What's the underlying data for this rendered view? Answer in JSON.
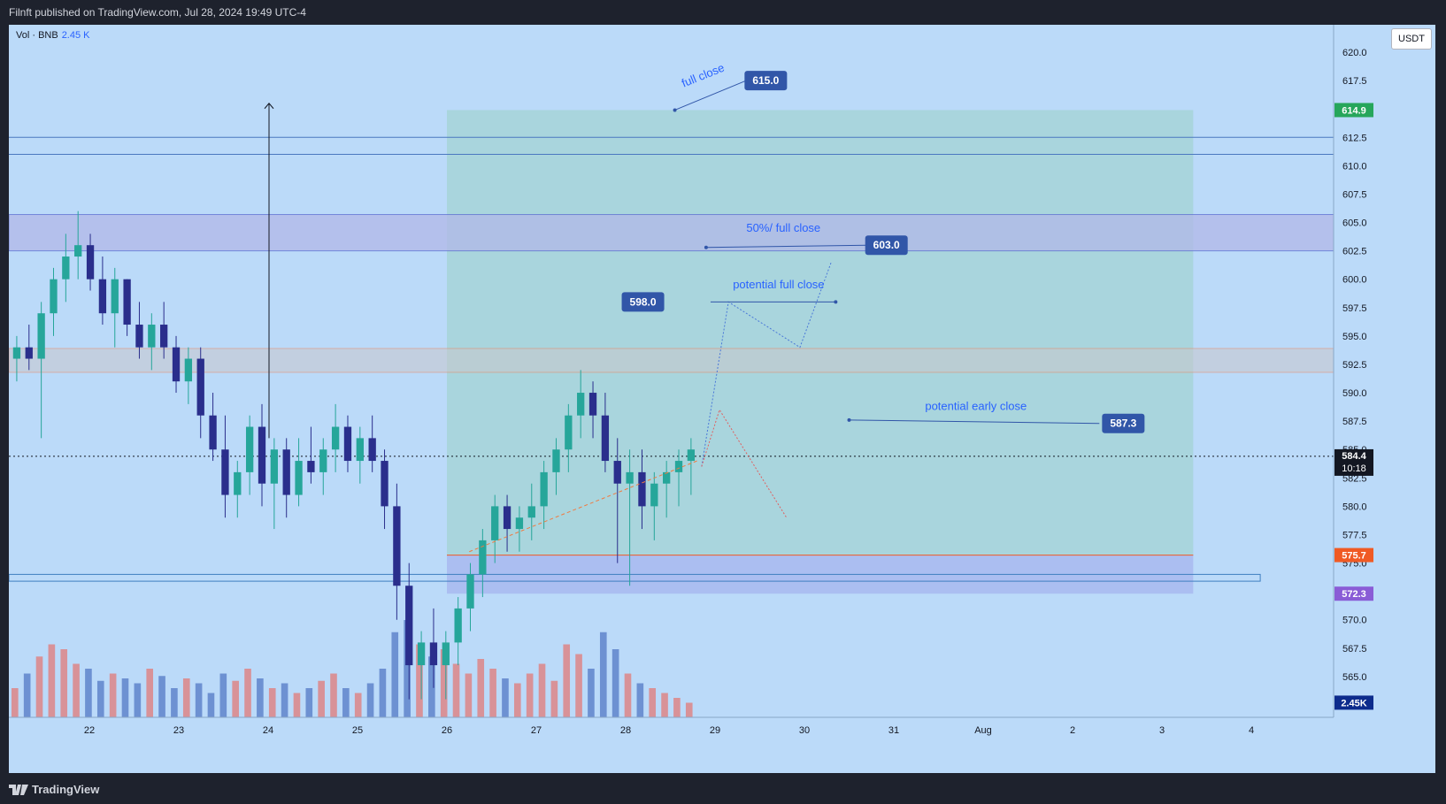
{
  "header": {
    "publisher_text": "Filnft published on TradingView.com, Jul 28, 2024 19:49 UTC-4"
  },
  "footer": {
    "brand": "TradingView"
  },
  "legend": {
    "indicator": "Vol · BNB",
    "value": "2.45 K"
  },
  "currency_button": "USDT",
  "colors": {
    "background": "#bbdaf9",
    "target_zone": "#a6d3d8",
    "stop_zone": "#aabaf0",
    "bull": "#26a69a",
    "bear": "#2a2e8c",
    "resistance_band": "#b2b8e8",
    "gray_band": "#c9c7cc",
    "label_blue": "#3156a8",
    "current_price": "#131722",
    "green_tag": "#26a65b",
    "orange_tag": "#f05a24",
    "purple_tag": "#8a5cd6",
    "dark_tag": "#0d2b8c"
  },
  "chart_data": {
    "type": "candlestick",
    "symbol": "BNB / USDT",
    "price_axis": {
      "range": [
        563,
        621
      ],
      "ticks": [
        "620.0",
        "617.5",
        "615.0",
        "612.5",
        "610.0",
        "607.5",
        "605.0",
        "602.5",
        "600.0",
        "597.5",
        "595.0",
        "592.5",
        "590.0",
        "587.5",
        "585.0",
        "582.5",
        "580.0",
        "577.5",
        "575.0",
        "572.5",
        "570.0",
        "567.5",
        "565.0",
        "562.5"
      ]
    },
    "time_axis": {
      "labels": [
        "22",
        "23",
        "24",
        "25",
        "26",
        "27",
        "28",
        "29",
        "30",
        "31",
        "Aug",
        "2",
        "3",
        "4"
      ]
    },
    "price_tags": [
      {
        "label": "614.9",
        "value": 614.9,
        "color": "#26a65b"
      },
      {
        "label": "575.7",
        "value": 575.7,
        "color": "#f05a24"
      },
      {
        "label": "572.3",
        "value": 572.3,
        "color": "#8a5cd6"
      },
      {
        "label": "2.45K",
        "value": 562.7,
        "color": "#0d2b8c"
      }
    ],
    "current_price": {
      "value": 584.4,
      "countdown": "10:18"
    },
    "horizontal_lines": [
      612.5,
      611.0
    ],
    "zones": [
      {
        "kind": "resistance",
        "from": 602.5,
        "to": 605.7
      },
      {
        "kind": "supply",
        "from": 591.8,
        "to": 593.9
      },
      {
        "kind": "support",
        "from": 573.4,
        "to": 574.0
      }
    ],
    "position": {
      "entry": 575.7,
      "target": 614.9,
      "stop": 572.3,
      "start": "26",
      "end": "3 (late)"
    },
    "annotations": [
      {
        "text": "full close",
        "price": 615.0
      },
      {
        "text": "50%/ full close",
        "price": 603.0
      },
      {
        "text": "potential full close",
        "price": 598.0
      },
      {
        "text": "potential early close",
        "price": 587.3
      }
    ],
    "candles_ohlc_approx": [
      [
        593,
        595,
        591,
        594
      ],
      [
        594,
        596,
        592,
        593
      ],
      [
        593,
        598,
        586,
        597
      ],
      [
        597,
        601,
        595,
        600
      ],
      [
        600,
        604,
        598,
        602
      ],
      [
        602,
        606,
        600,
        603
      ],
      [
        603,
        604,
        599,
        600
      ],
      [
        600,
        602,
        596,
        597
      ],
      [
        597,
        601,
        594,
        600
      ],
      [
        600,
        600,
        595,
        596
      ],
      [
        596,
        598,
        593,
        594
      ],
      [
        594,
        597,
        592,
        596
      ],
      [
        596,
        598,
        593,
        594
      ],
      [
        594,
        595,
        590,
        591
      ],
      [
        591,
        594,
        589,
        593
      ],
      [
        593,
        594,
        586,
        588
      ],
      [
        588,
        590,
        584,
        585
      ],
      [
        585,
        588,
        579,
        581
      ],
      [
        581,
        584,
        579,
        583
      ],
      [
        583,
        588,
        581,
        587
      ],
      [
        587,
        589,
        580,
        582
      ],
      [
        582,
        586,
        578,
        585
      ],
      [
        585,
        586,
        579,
        581
      ],
      [
        581,
        586,
        580,
        584
      ],
      [
        584,
        587,
        582,
        583
      ],
      [
        583,
        586,
        581,
        585
      ],
      [
        585,
        589,
        583,
        587
      ],
      [
        587,
        588,
        583,
        584
      ],
      [
        584,
        587,
        582,
        586
      ],
      [
        586,
        588,
        583,
        584
      ],
      [
        584,
        585,
        578,
        580
      ],
      [
        580,
        582,
        570,
        573
      ],
      [
        573,
        575,
        563,
        566
      ],
      [
        566,
        569,
        563,
        568
      ],
      [
        568,
        571,
        564,
        566
      ],
      [
        566,
        569,
        563,
        568
      ],
      [
        568,
        572,
        566,
        571
      ],
      [
        571,
        575,
        569,
        574
      ],
      [
        574,
        578,
        572,
        577
      ],
      [
        577,
        581,
        575,
        580
      ],
      [
        580,
        581,
        576,
        578
      ],
      [
        578,
        580,
        576,
        579
      ],
      [
        579,
        582,
        577,
        580
      ],
      [
        580,
        584,
        578,
        583
      ],
      [
        583,
        586,
        581,
        585
      ],
      [
        585,
        589,
        583,
        588
      ],
      [
        588,
        592,
        586,
        590
      ],
      [
        590,
        591,
        586,
        588
      ],
      [
        588,
        590,
        583,
        584
      ],
      [
        584,
        586,
        575,
        582
      ],
      [
        582,
        585,
        573,
        583
      ],
      [
        583,
        585,
        578,
        580
      ],
      [
        580,
        583,
        577,
        582
      ],
      [
        582,
        584,
        579,
        583
      ],
      [
        583,
        585,
        580,
        584
      ],
      [
        584,
        586,
        581,
        585
      ]
    ],
    "volume_approx": [
      12,
      18,
      25,
      30,
      28,
      22,
      20,
      15,
      18,
      16,
      14,
      20,
      17,
      12,
      16,
      14,
      10,
      18,
      15,
      20,
      16,
      12,
      14,
      10,
      12,
      15,
      18,
      12,
      10,
      14,
      20,
      35,
      40,
      30,
      25,
      28,
      22,
      18,
      24,
      20,
      16,
      14,
      18,
      22,
      15,
      30,
      26,
      20,
      35,
      28,
      18,
      14,
      12,
      10,
      8,
      6
    ]
  }
}
